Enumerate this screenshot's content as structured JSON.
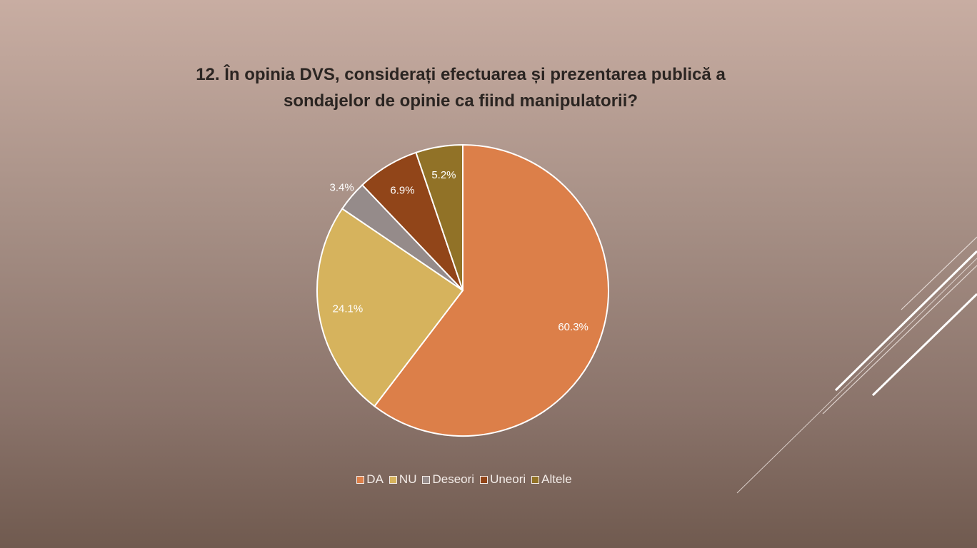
{
  "title_line1": "12. În opinia DVS, considerați efectuarea și prezentarea publică a",
  "title_line2": "sondajelor de opinie ca fiind manipulatorii?",
  "chart_data": {
    "type": "pie",
    "title": "12. În opinia DVS, considerați efectuarea și prezentarea publică a sondajelor de opinie ca fiind manipulatorii?",
    "categories": [
      "DA",
      "NU",
      "Deseori",
      "Uneori",
      "Altele"
    ],
    "values": [
      60.3,
      24.1,
      3.4,
      6.9,
      5.2
    ],
    "labels": [
      "60.3%",
      "24.1%",
      "3.4%",
      "6.9%",
      "5.2%"
    ],
    "colors": [
      "#dc7f49",
      "#d6b35d",
      "#958b8a",
      "#914519",
      "#917227"
    ],
    "legend": "bottom"
  }
}
